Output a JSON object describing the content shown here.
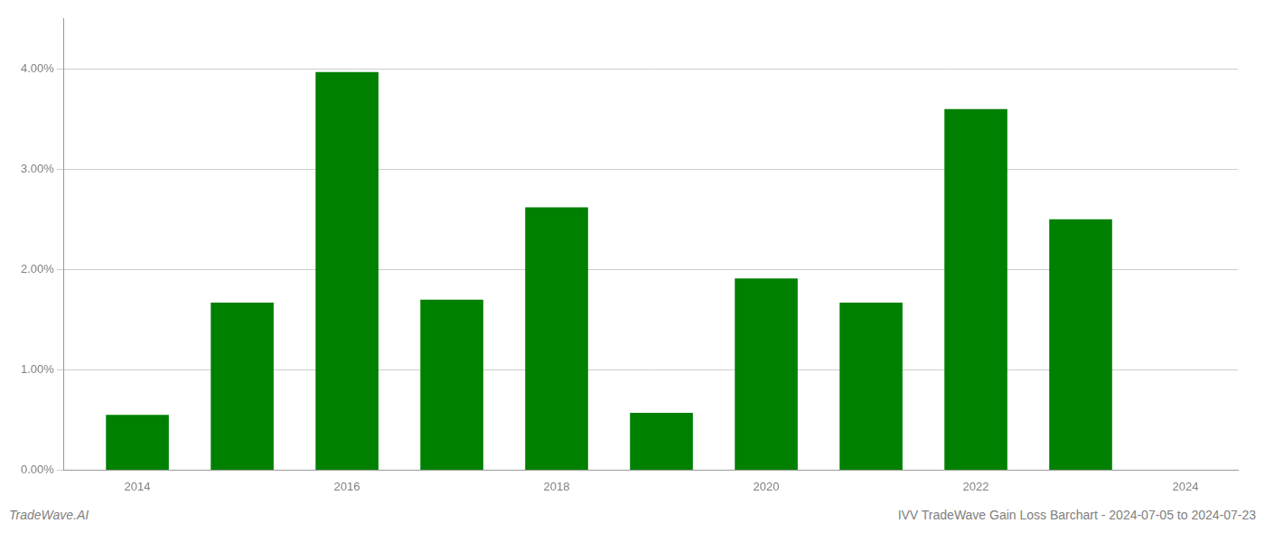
{
  "chart_data": {
    "type": "bar",
    "x": [
      2014,
      2015,
      2016,
      2017,
      2018,
      2019,
      2020,
      2021,
      2022,
      2023
    ],
    "values": [
      0.0055,
      0.0167,
      0.0397,
      0.017,
      0.0262,
      0.0057,
      0.0191,
      0.0167,
      0.036,
      0.025
    ],
    "color": "#008000",
    "xlim": [
      2013.3,
      2024.5
    ],
    "xticks": [
      2014,
      2016,
      2018,
      2020,
      2022,
      2024
    ],
    "ylim": [
      0.0,
      0.045
    ],
    "yticks": [
      {
        "value": 0.0,
        "label": "0.00%"
      },
      {
        "value": 0.01,
        "label": "1.00%"
      },
      {
        "value": 0.02,
        "label": "2.00%"
      },
      {
        "value": 0.03,
        "label": "3.00%"
      },
      {
        "value": 0.04,
        "label": "4.00%"
      }
    ],
    "grid": "y",
    "annotations": [
      "TradeWave.AI",
      "IVV TradeWave Gain Loss Barchart - 2024-07-05 to 2024-07-23"
    ]
  }
}
